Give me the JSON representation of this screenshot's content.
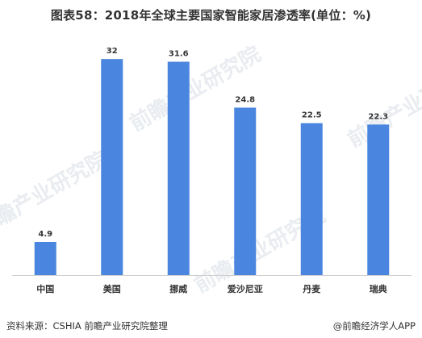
{
  "chart_data": {
    "type": "bar",
    "title": "图表58：2018年全球主要国家智能家居渗透率(单位：%)",
    "categories": [
      "中国",
      "美国",
      "挪威",
      "爱沙尼亚",
      "丹麦",
      "瑞典"
    ],
    "values": [
      4.9,
      32,
      31.6,
      24.8,
      22.5,
      22.3
    ],
    "value_labels": [
      "4.9",
      "32",
      "31.6",
      "24.8",
      "22.5",
      "22.3"
    ],
    "ylim": [
      0,
      32.5
    ],
    "bar_color": "#4a86e0",
    "grid": false,
    "legend": "none"
  },
  "footer": {
    "source": "资料来源：CSHIA 前瞻产业研究院整理",
    "brand": "@前瞻经济学人APP"
  },
  "watermark": {
    "text": "前瞻产业研究院"
  }
}
